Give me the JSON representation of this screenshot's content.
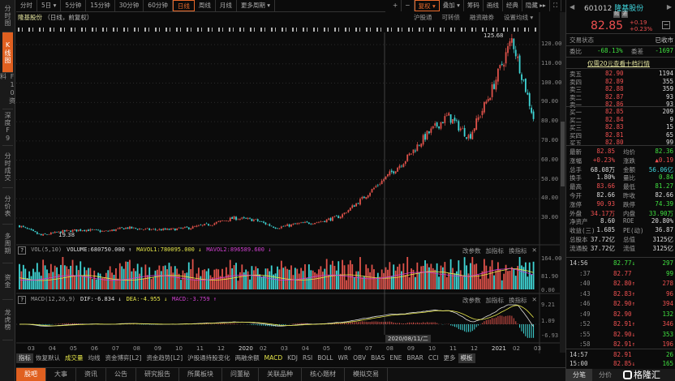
{
  "sidebar": [
    {
      "label": "分时图"
    },
    {
      "label": "K线图",
      "active": true
    },
    {
      "label": "F10资料"
    },
    {
      "label": "深度F9"
    },
    {
      "label": "分时成交"
    },
    {
      "label": "分价表"
    },
    {
      "label": "多周期"
    },
    {
      "label": "资金"
    },
    {
      "label": "龙虎榜"
    }
  ],
  "periods": [
    "分时",
    "5日 ▾",
    "5分钟",
    "15分钟",
    "30分钟",
    "60分钟",
    "日线",
    "周线",
    "月线",
    "更多周期 ▾"
  ],
  "active_period": "日线",
  "tools": [
    "+",
    "−",
    "复权 ▾",
    "叠加 ▾",
    "筹码",
    "画线",
    "经典",
    "隐藏 ▸▸",
    "⛶"
  ],
  "title": {
    "name": "隆基股份",
    "mode": "（日线，前复权）"
  },
  "subtools": [
    "沪股通",
    "可转债",
    "融资融券",
    "设置均线 ▾"
  ],
  "price_axis": [
    "120.00",
    "110.00",
    "100.00",
    "90.00",
    "80.00",
    "70.00",
    "60.00",
    "50.00",
    "40.00",
    "30.00"
  ],
  "high_label": "125.68",
  "low_label": "19.38",
  "vol": {
    "name": "VOL(5,10)",
    "volume": "VOLUME:680750.000 ↑",
    "mavol1": "MAVOL1:780095.000 ↓",
    "mavol2": "MAVOL2:896589.600 ↓",
    "axis": [
      "164.00",
      "81.90",
      "0.00"
    ]
  },
  "macd": {
    "name": "MACD(12,26,9)",
    "dif": "DIF:-6.834 ↓",
    "dea": "DEA:-4.955 ↓",
    "macd": "MACD:-3.759 ↑",
    "axis": [
      "9.21",
      "1.09",
      "-6.93"
    ]
  },
  "ind_tools": [
    "改参数",
    "加指标",
    "换指标",
    "✕"
  ],
  "xaxis": [
    "03",
    "04",
    "05",
    "06",
    "07",
    "08",
    "09",
    "10",
    "11",
    "12",
    "2020",
    "02",
    "03",
    "04",
    "05",
    "06",
    "07",
    "08",
    "09",
    "10",
    "11",
    "12",
    "2021",
    "02",
    "03"
  ],
  "cursor_date": "2020/08/11/二",
  "ind_tabs": [
    "指标",
    "恢复默认",
    "成交量",
    "均线",
    "资金博弈[L2]",
    "资金趋势[L2]",
    "沪股通持股变化",
    "两融余额",
    "MACD",
    "KDJ",
    "RSI",
    "BOLL",
    "WR",
    "OBV",
    "BIAS",
    "ENE",
    "BRAR",
    "CCI",
    "更多",
    "模板"
  ],
  "bottom_tabs": [
    "股吧",
    "大事",
    "资讯",
    "公告",
    "研究报告",
    "所属板块",
    "问董秘",
    "关联品种",
    "核心题材",
    "模拟交易"
  ],
  "quote": {
    "code": "601012",
    "name": "隆基股份",
    "badges": [
      "融",
      "通"
    ],
    "price": "82.85",
    "change": "+0.19",
    "pct": "+0.23%",
    "status_label": "交易状态",
    "status": "已收市",
    "wb_label": "委比",
    "wb": "-68.13%",
    "wc_label": "委差",
    "wc": "-1697",
    "link": "仅需20元查看十档行情"
  },
  "asks": [
    [
      "卖五",
      "82.90",
      "1194"
    ],
    [
      "卖四",
      "82.89",
      "355"
    ],
    [
      "卖三",
      "82.88",
      "359"
    ],
    [
      "卖二",
      "82.87",
      "93"
    ],
    [
      "卖一",
      "82.86",
      "93"
    ]
  ],
  "bids": [
    [
      "买一",
      "82.85",
      "209"
    ],
    [
      "买二",
      "82.84",
      "9"
    ],
    [
      "买三",
      "82.83",
      "15"
    ],
    [
      "买四",
      "82.81",
      "65"
    ],
    [
      "买五",
      "82.80",
      "99"
    ]
  ],
  "stats": [
    [
      "最新",
      "82.85",
      "red",
      "均价",
      "82.36",
      "green"
    ],
    [
      "涨幅",
      "+0.23%",
      "red",
      "涨跌",
      "▲0.19",
      "red"
    ],
    [
      "总手",
      "68.08万",
      "white",
      "金额",
      "56.06亿",
      "cyan"
    ],
    [
      "换手",
      "1.80%",
      "white",
      "量比",
      "0.84",
      "green"
    ],
    [
      "最高",
      "83.66",
      "red",
      "最低",
      "81.27",
      "green"
    ],
    [
      "今开",
      "82.66",
      "white",
      "昨收",
      "82.66",
      "white"
    ],
    [
      "涨停",
      "90.93",
      "red",
      "跌停",
      "74.39",
      "green"
    ],
    [
      "外盘",
      "34.17万",
      "red",
      "内盘",
      "33.90万",
      "green"
    ],
    [
      "净资产",
      "8.60",
      "white",
      "ROE",
      "20.80%",
      "white"
    ],
    [
      "收益(三)",
      "1.685",
      "white",
      "PE(动)",
      "36.87",
      "white"
    ],
    [
      "总股本",
      "37.72亿",
      "white",
      "总值",
      "3125亿",
      "white"
    ],
    [
      "流通股",
      "37.72亿",
      "white",
      "流值",
      "3125亿",
      "white"
    ]
  ],
  "ticks": [
    [
      "14:56",
      "82.77↓",
      "green",
      "297",
      "green"
    ],
    [
      ":37",
      "82.77",
      "red",
      "99",
      "green"
    ],
    [
      ":40",
      "82.80↑",
      "red",
      "278",
      "red"
    ],
    [
      ":43",
      "82.83↑",
      "red",
      "96",
      "red"
    ],
    [
      ":46",
      "82.90↑",
      "red",
      "394",
      "red"
    ],
    [
      ":49",
      "82.90",
      "red",
      "132",
      "green"
    ],
    [
      ":52",
      "82.91↑",
      "red",
      "346",
      "red"
    ],
    [
      ":55",
      "82.90↓",
      "red",
      "353",
      "green"
    ],
    [
      ":58",
      "82.91↑",
      "red",
      "196",
      "red"
    ],
    [
      "14:57",
      "82.91",
      "red",
      "26",
      "green"
    ],
    [
      "15:00",
      "82.85↓",
      "red",
      "165",
      "green"
    ]
  ],
  "right_tabs": [
    "分笔",
    "分价"
  ],
  "watermark": "格隆汇",
  "chart_data": {
    "type": "candlestick",
    "title": "隆基股份 日线 前复权",
    "months": [
      "2019-03",
      "2019-04",
      "2019-05",
      "2019-06",
      "2019-07",
      "2019-08",
      "2019-09",
      "2019-10",
      "2019-11",
      "2019-12",
      "2020-01",
      "2020-02",
      "2020-03",
      "2020-04",
      "2020-05",
      "2020-06",
      "2020-07",
      "2020-08",
      "2020-09",
      "2020-10",
      "2020-11",
      "2020-12",
      "2021-01",
      "2021-02",
      "2021-03"
    ],
    "approx_close": [
      26,
      21,
      23,
      24,
      23,
      25,
      24,
      24,
      25,
      27,
      30,
      29,
      25,
      27,
      28,
      31,
      40,
      50,
      60,
      73,
      83,
      72,
      95,
      123,
      82
    ],
    "ylim": [
      25,
      127
    ],
    "colors": {
      "up": "#e0524a",
      "down": "#3fd5d5",
      "ma1": "#e6e64a",
      "ma2": "#d040d0"
    }
  }
}
